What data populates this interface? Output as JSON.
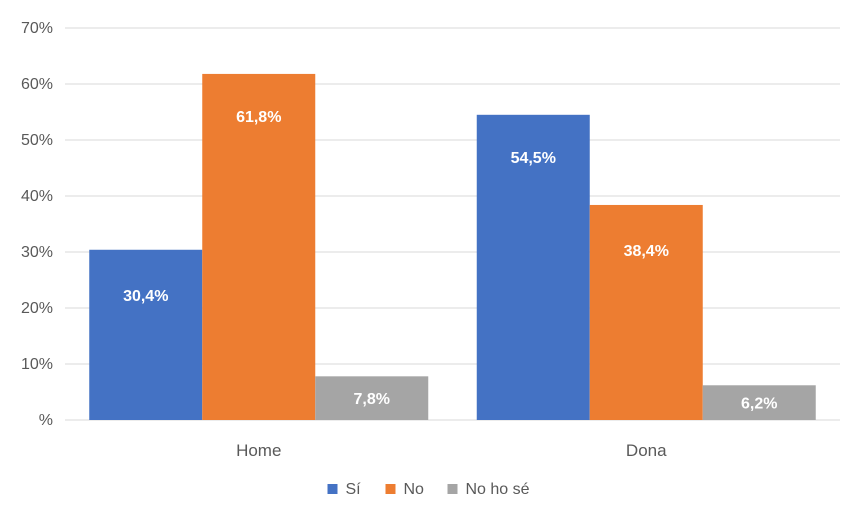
{
  "chart_data": {
    "type": "bar",
    "title": "",
    "xlabel": "",
    "ylabel": "",
    "categories": [
      "Home",
      "Dona"
    ],
    "series": [
      {
        "name": "Sí",
        "values": [
          30.4,
          54.5
        ],
        "labels": [
          "30,4%",
          "54,5%"
        ],
        "color": "#4472c4"
      },
      {
        "name": "No",
        "values": [
          61.8,
          38.4
        ],
        "labels": [
          "61,8%",
          "38,4%"
        ],
        "color": "#ed7d31"
      },
      {
        "name": "No ho sé",
        "values": [
          7.8,
          6.2
        ],
        "labels": [
          "7,8%",
          "6,2%"
        ],
        "color": "#a5a5a5"
      }
    ],
    "ylim": [
      0,
      70
    ],
    "y_ticks": [
      0,
      10,
      20,
      30,
      40,
      50,
      60,
      70
    ],
    "y_tick_labels": [
      "%",
      "10%",
      "20%",
      "30%",
      "40%",
      "50%",
      "60%",
      "70%"
    ],
    "grid": true,
    "legend_position": "bottom"
  }
}
